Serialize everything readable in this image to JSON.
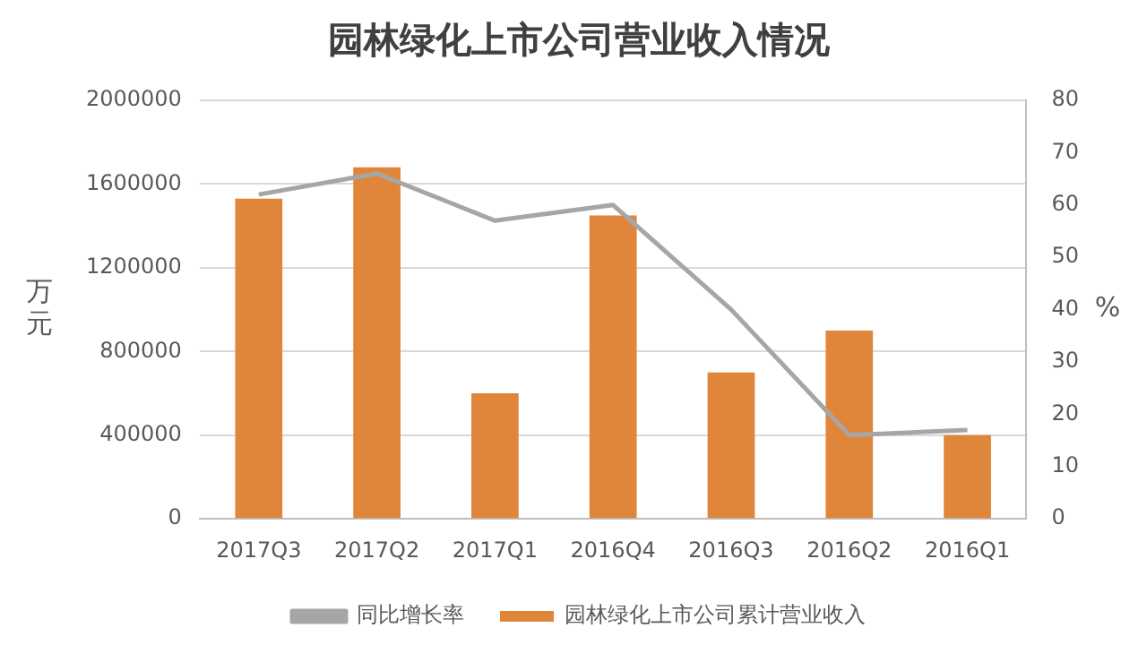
{
  "chart_data": {
    "type": "bar",
    "title": "园林绿化上市公司营业收入情况",
    "ylabel": "万元",
    "y2label": "%",
    "categories": [
      "2017Q3",
      "2017Q2",
      "2017Q1",
      "2016Q4",
      "2016Q3",
      "2016Q2",
      "2016Q1"
    ],
    "series": [
      {
        "name": "园林绿化上市公司累计营业收入",
        "color": "#e0863a",
        "values": [
          1530000,
          1680000,
          600000,
          1450000,
          700000,
          900000,
          400000
        ]
      },
      {
        "name": "同比增长率",
        "type": "line",
        "axis": "y2",
        "color": "#a6a6a6",
        "values": [
          62,
          66,
          57,
          60,
          40,
          16,
          17
        ]
      }
    ],
    "ylim": [
      0,
      2000000
    ],
    "yticks": [
      0,
      400000,
      800000,
      1200000,
      1600000,
      2000000
    ],
    "y2lim": [
      0,
      80
    ],
    "y2ticks": [
      0,
      10,
      20,
      30,
      40,
      50,
      60,
      70,
      80
    ],
    "grid": "y",
    "legend": "bottom",
    "marker": "none"
  }
}
